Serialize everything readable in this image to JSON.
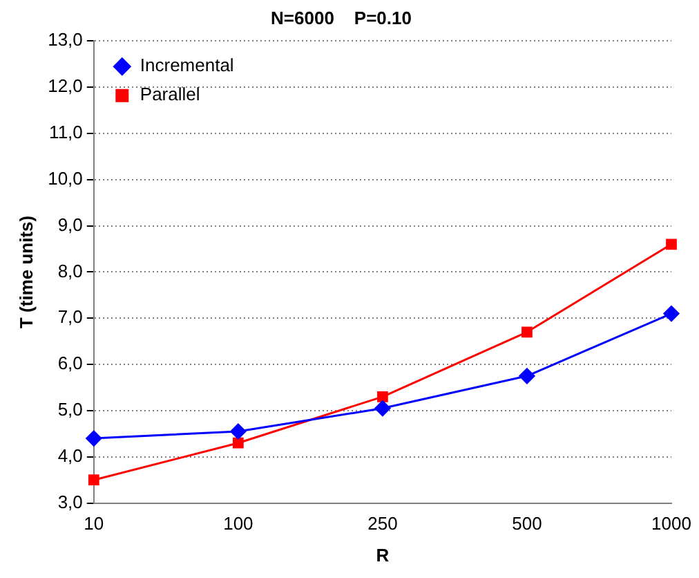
{
  "chart_data": {
    "type": "line",
    "title": "N=6000    P=0.10",
    "xlabel": "R",
    "ylabel": "T (time units)",
    "categories": [
      "10",
      "100",
      "250",
      "500",
      "1000"
    ],
    "series": [
      {
        "name": "Incremental",
        "color": "#0000ff",
        "marker": "diamond",
        "values": [
          4.4,
          4.55,
          5.05,
          5.75,
          7.1
        ]
      },
      {
        "name": "Parallel",
        "color": "#ff0000",
        "marker": "square",
        "values": [
          3.5,
          4.3,
          5.3,
          6.7,
          8.6
        ]
      }
    ],
    "ylim": [
      3,
      13
    ],
    "yticks": [
      {
        "value": 3,
        "label": "3,0"
      },
      {
        "value": 4,
        "label": "4,0"
      },
      {
        "value": 5,
        "label": "5,0"
      },
      {
        "value": 6,
        "label": "6,0"
      },
      {
        "value": 7,
        "label": "7,0"
      },
      {
        "value": 8,
        "label": "8,0"
      },
      {
        "value": 9,
        "label": "9,0"
      },
      {
        "value": 10,
        "label": "10,0"
      },
      {
        "value": 11,
        "label": "11,0"
      },
      {
        "value": 12,
        "label": "12,0"
      },
      {
        "value": 13,
        "label": "13,0"
      }
    ],
    "grid": "y",
    "legend": "top left",
    "line_style": "solid"
  }
}
